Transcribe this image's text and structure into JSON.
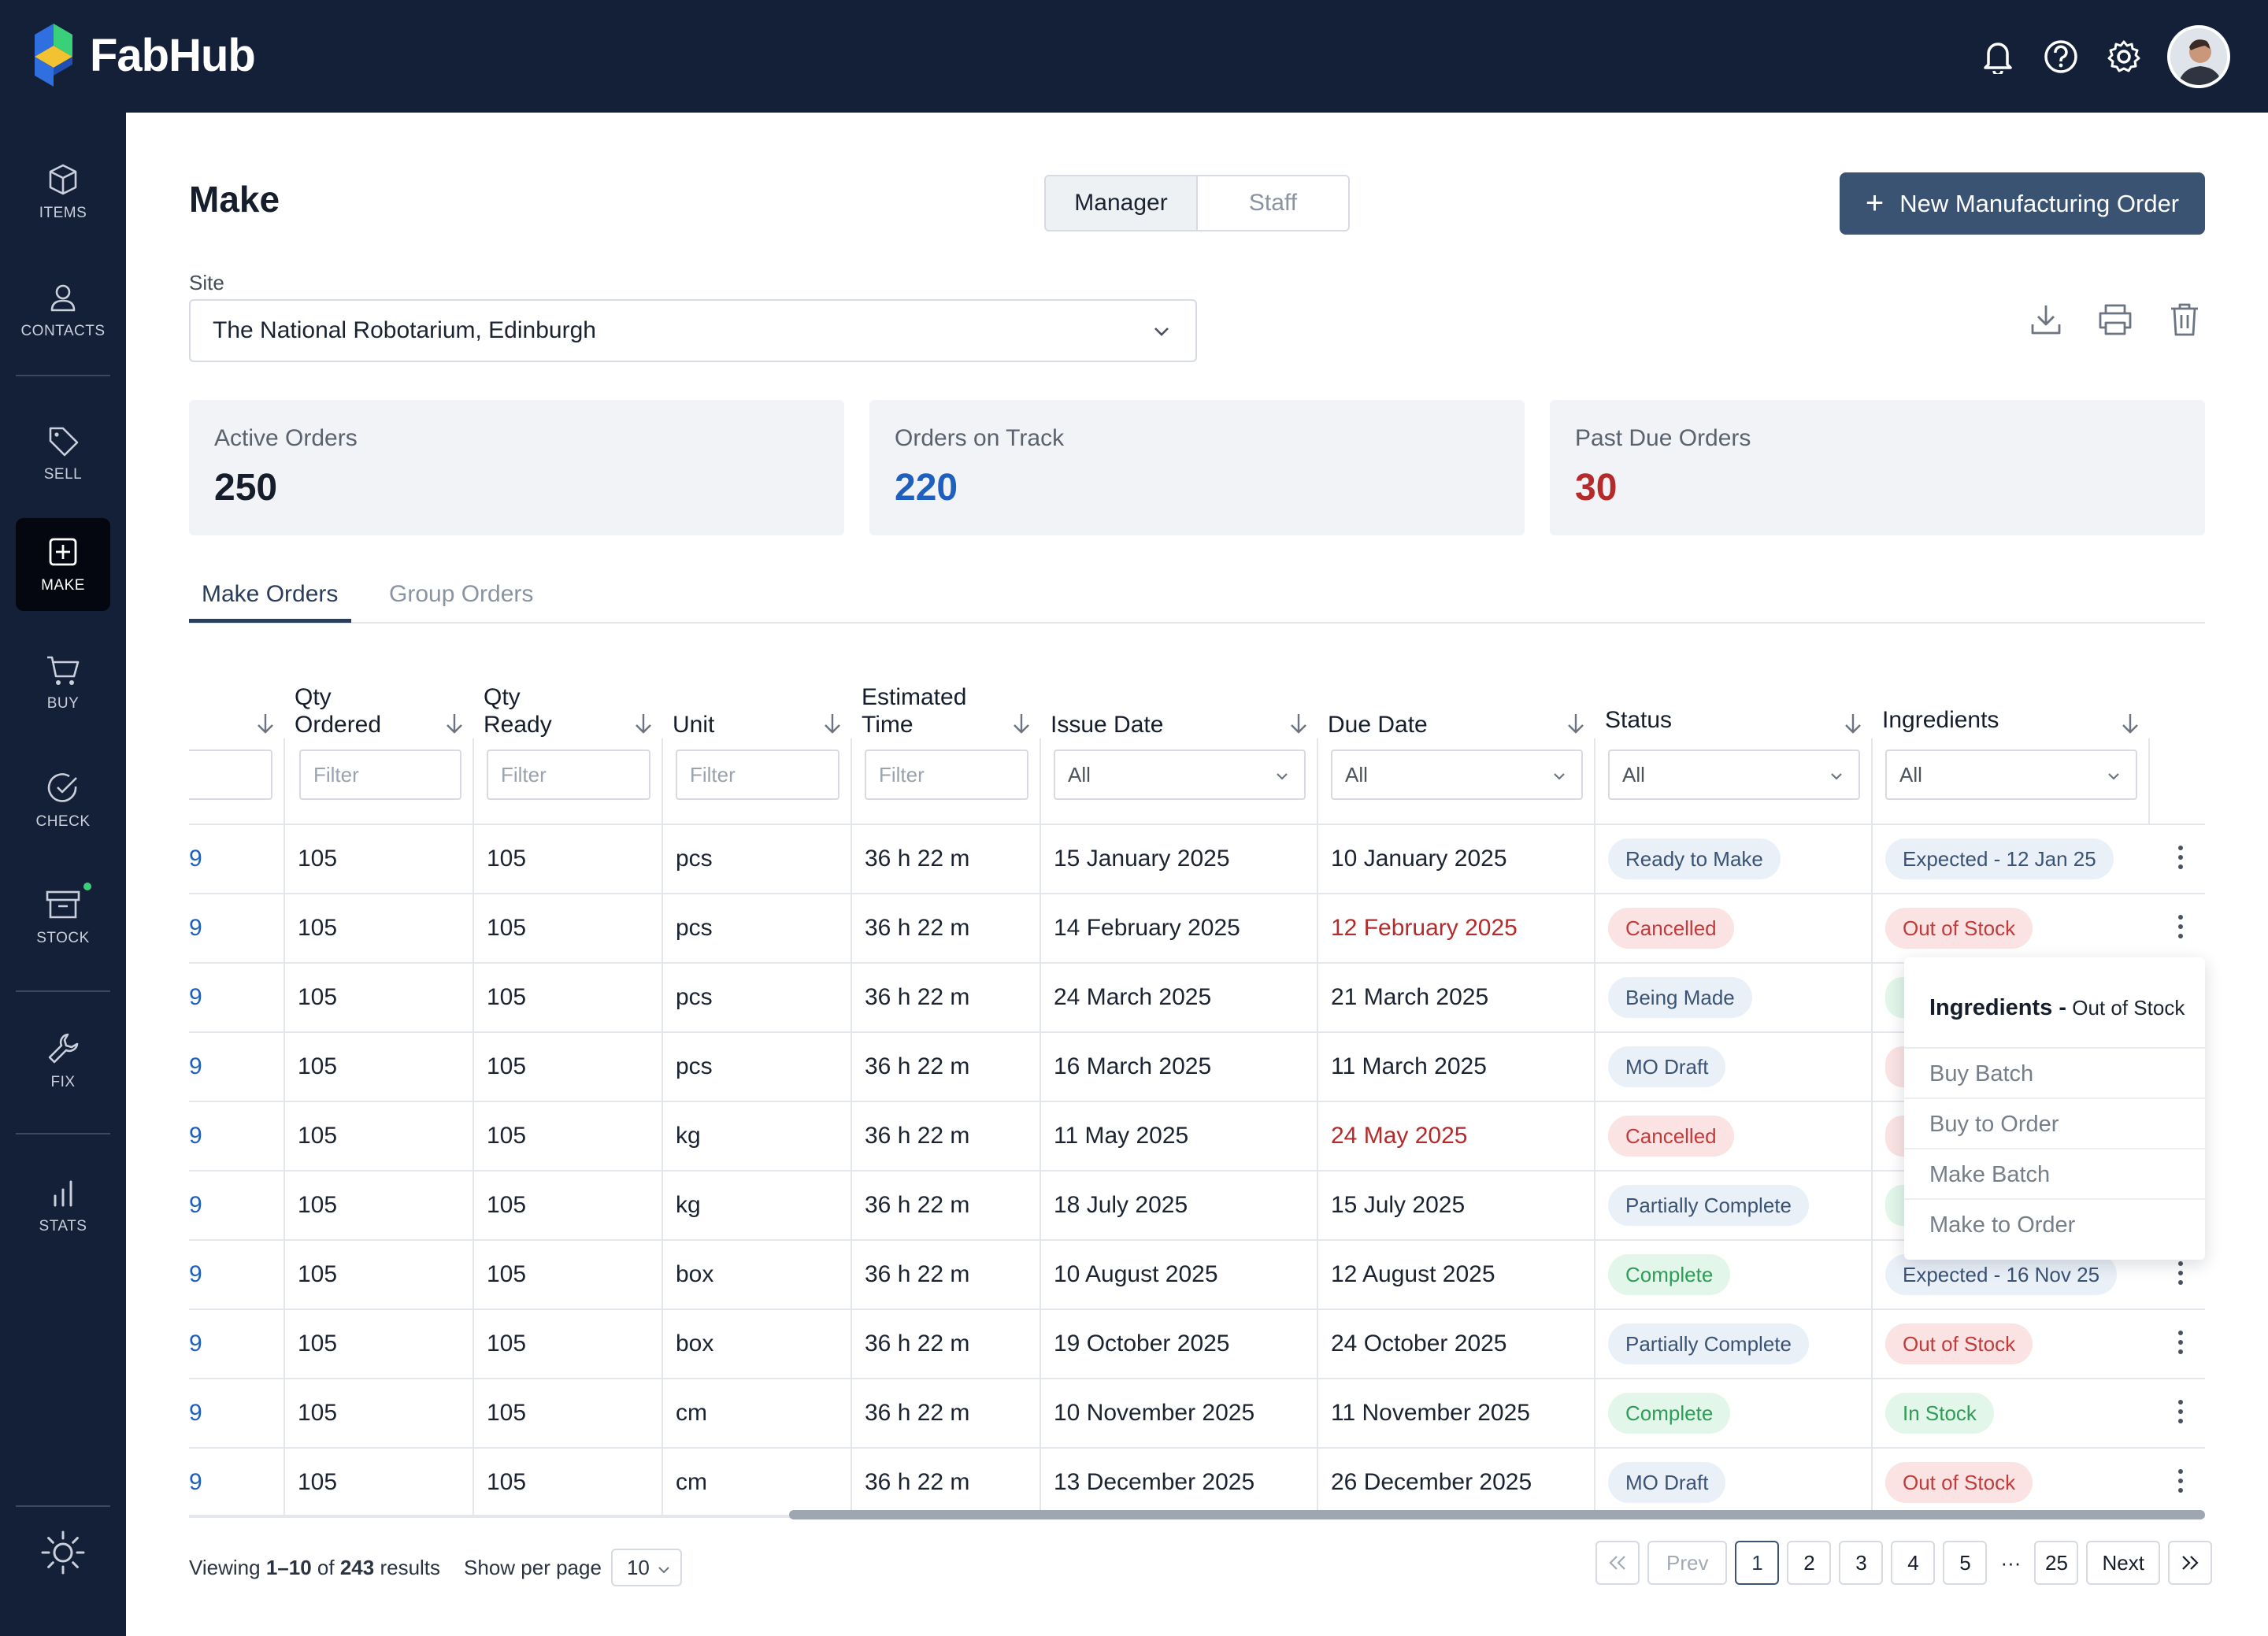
{
  "app": {
    "name": "FabHub"
  },
  "header": {
    "icons": [
      "bell-icon",
      "help-icon",
      "gear-icon"
    ]
  },
  "sidebar": {
    "items": [
      {
        "label": "ITEMS",
        "icon": "box-icon"
      },
      {
        "label": "CONTACTS",
        "icon": "person-icon"
      },
      {
        "label": "SELL",
        "icon": "tag-icon"
      },
      {
        "label": "MAKE",
        "icon": "plus-square-icon",
        "active": true
      },
      {
        "label": "BUY",
        "icon": "cart-icon"
      },
      {
        "label": "CHECK",
        "icon": "check-circle-icon"
      },
      {
        "label": "STOCK",
        "icon": "archive-icon"
      },
      {
        "label": "FIX",
        "icon": "wrench-icon"
      },
      {
        "label": "STATS",
        "icon": "bar-chart-icon"
      }
    ],
    "theme_icon": "sun-icon"
  },
  "page": {
    "title": "Make",
    "view_toggle": {
      "manager": "Manager",
      "staff": "Staff",
      "selected": "Manager"
    },
    "new_button": "New Manufacturing Order",
    "site_label": "Site",
    "site_value": "The National Robotarium, Edinburgh"
  },
  "cards": [
    {
      "label": "Active Orders",
      "value": "250",
      "color": "#161e2b"
    },
    {
      "label": "Orders on Track",
      "value": "220",
      "color": "#1f5fbd"
    },
    {
      "label": "Past Due Orders",
      "value": "30",
      "color": "#b52a2a"
    }
  ],
  "tabs": {
    "make_orders": "Make Orders",
    "group_orders": "Group Orders"
  },
  "table": {
    "headers": {
      "qty_ordered": [
        "Qty",
        "Ordered"
      ],
      "qty_ready": [
        "Qty",
        "Ready"
      ],
      "unit": "Unit",
      "est_time": [
        "Estimated",
        "Time"
      ],
      "issue_date": "Issue Date",
      "due_date": "Due Date",
      "status": "Status",
      "ingredients": "Ingredients"
    },
    "filters": {
      "text_placeholder": "Filter",
      "select_value": "All"
    },
    "rows": [
      {
        "id": "9",
        "qty_ordered": "105",
        "qty_ready": "105",
        "unit": "pcs",
        "time": "36 h 22 m",
        "issue": "15 January 2025",
        "due": "10 January 2025",
        "due_late": false,
        "status": "Ready to Make",
        "status_tone": "blue",
        "ingredients": "Expected - 12 Jan 25",
        "ing_tone": "blue"
      },
      {
        "id": "9",
        "qty_ordered": "105",
        "qty_ready": "105",
        "unit": "pcs",
        "time": "36 h 22 m",
        "issue": "14 February 2025",
        "due": "12 February 2025",
        "due_late": true,
        "status": "Cancelled",
        "status_tone": "red",
        "ingredients": "Out of Stock",
        "ing_tone": "red"
      },
      {
        "id": "9",
        "qty_ordered": "105",
        "qty_ready": "105",
        "unit": "pcs",
        "time": "36 h 22 m",
        "issue": "24 March 2025",
        "due": "21 March 2025",
        "due_late": false,
        "status": "Being Made",
        "status_tone": "blue",
        "ingredients": "",
        "ing_tone": "green"
      },
      {
        "id": "9",
        "qty_ordered": "105",
        "qty_ready": "105",
        "unit": "pcs",
        "time": "36 h 22 m",
        "issue": "16 March 2025",
        "due": "11 March 2025",
        "due_late": false,
        "status": "MO Draft",
        "status_tone": "blue",
        "ingredients": "",
        "ing_tone": "red"
      },
      {
        "id": "9",
        "qty_ordered": "105",
        "qty_ready": "105",
        "unit": "kg",
        "time": "36 h 22 m",
        "issue": "11 May 2025",
        "due": "24 May 2025",
        "due_late": true,
        "status": "Cancelled",
        "status_tone": "red",
        "ingredients": "",
        "ing_tone": "red"
      },
      {
        "id": "9",
        "qty_ordered": "105",
        "qty_ready": "105",
        "unit": "kg",
        "time": "36 h 22 m",
        "issue": "18 July 2025",
        "due": "15 July 2025",
        "due_late": false,
        "status": "Partially Complete",
        "status_tone": "blue",
        "ingredients": "",
        "ing_tone": "green"
      },
      {
        "id": "9",
        "qty_ordered": "105",
        "qty_ready": "105",
        "unit": "box",
        "time": "36 h 22 m",
        "issue": "10 August 2025",
        "due": "12 August 2025",
        "due_late": false,
        "status": "Complete",
        "status_tone": "green",
        "ingredients": "Expected - 16 Nov 25",
        "ing_tone": "blue"
      },
      {
        "id": "9",
        "qty_ordered": "105",
        "qty_ready": "105",
        "unit": "box",
        "time": "36 h 22 m",
        "issue": "19 October 2025",
        "due": "24 October 2025",
        "due_late": false,
        "status": "Partially Complete",
        "status_tone": "blue",
        "ingredients": "Out of Stock",
        "ing_tone": "red"
      },
      {
        "id": "9",
        "qty_ordered": "105",
        "qty_ready": "105",
        "unit": "cm",
        "time": "36 h 22 m",
        "issue": "10 November 2025",
        "due": "11 November 2025",
        "due_late": false,
        "status": "Complete",
        "status_tone": "green",
        "ingredients": "In Stock",
        "ing_tone": "green"
      },
      {
        "id": "9",
        "qty_ordered": "105",
        "qty_ready": "105",
        "unit": "cm",
        "time": "36 h 22 m",
        "issue": "13 December 2025",
        "due": "26 December 2025",
        "due_late": false,
        "status": "MO Draft",
        "status_tone": "blue",
        "ingredients": "Out of Stock",
        "ing_tone": "red"
      }
    ]
  },
  "popover": {
    "title": "Ingredients -",
    "subtitle": "Out of Stock",
    "items": [
      "Buy Batch",
      "Buy to Order",
      "Make Batch",
      "Make to Order"
    ]
  },
  "footer": {
    "viewing_prefix": "Viewing",
    "range": "1–10",
    "of": "of",
    "total": "243",
    "results": "results",
    "per_page_label": "Show per page",
    "per_page_value": "10",
    "pager": {
      "prev": "Prev",
      "next": "Next",
      "pages": [
        "1",
        "2",
        "3",
        "4",
        "5"
      ],
      "ellipsis": "···",
      "last": "25",
      "current": "1"
    }
  }
}
